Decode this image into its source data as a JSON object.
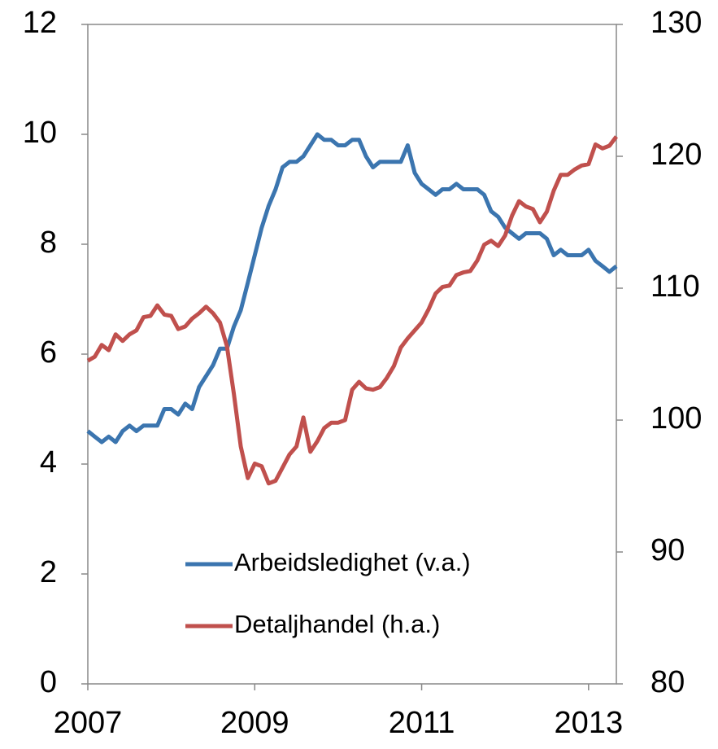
{
  "chart_data": {
    "type": "line",
    "x": [
      2007,
      2007.083,
      2007.167,
      2007.25,
      2007.333,
      2007.417,
      2007.5,
      2007.583,
      2007.667,
      2007.75,
      2007.833,
      2007.917,
      2008,
      2008.083,
      2008.167,
      2008.25,
      2008.333,
      2008.417,
      2008.5,
      2008.583,
      2008.667,
      2008.75,
      2008.833,
      2008.917,
      2009,
      2009.083,
      2009.167,
      2009.25,
      2009.333,
      2009.417,
      2009.5,
      2009.583,
      2009.667,
      2009.75,
      2009.833,
      2009.917,
      2010,
      2010.083,
      2010.167,
      2010.25,
      2010.333,
      2010.417,
      2010.5,
      2010.583,
      2010.667,
      2010.75,
      2010.833,
      2010.917,
      2011,
      2011.083,
      2011.167,
      2011.25,
      2011.333,
      2011.417,
      2011.5,
      2011.583,
      2011.667,
      2011.75,
      2011.833,
      2011.917,
      2012,
      2012.083,
      2012.167,
      2012.25,
      2012.333,
      2012.417,
      2012.5,
      2012.583,
      2012.667,
      2012.75,
      2012.833,
      2012.917,
      2013,
      2013.083,
      2013.167,
      2013.25,
      2013.333
    ],
    "series": [
      {
        "name": "Arbeidsledighet (v.a.)",
        "color": "#3b75af",
        "axis": "y",
        "values": [
          4.6,
          4.5,
          4.4,
          4.5,
          4.4,
          4.6,
          4.7,
          4.6,
          4.7,
          4.7,
          4.7,
          5.0,
          5.0,
          4.9,
          5.1,
          5.0,
          5.4,
          5.6,
          5.8,
          6.1,
          6.1,
          6.5,
          6.8,
          7.3,
          7.8,
          8.3,
          8.7,
          9.0,
          9.4,
          9.5,
          9.5,
          9.6,
          9.8,
          10.0,
          9.9,
          9.9,
          9.8,
          9.8,
          9.9,
          9.9,
          9.6,
          9.4,
          9.5,
          9.5,
          9.5,
          9.5,
          9.8,
          9.3,
          9.1,
          9.0,
          8.9,
          9.0,
          9.0,
          9.1,
          9.0,
          9.0,
          9.0,
          8.9,
          8.6,
          8.5,
          8.3,
          8.2,
          8.1,
          8.2,
          8.2,
          8.2,
          8.1,
          7.8,
          7.9,
          7.8,
          7.8,
          7.8,
          7.9,
          7.7,
          7.6,
          7.5,
          7.6
        ]
      },
      {
        "name": "Detaljhandel (h.a.)",
        "color": "#c0504d",
        "axis": "y2",
        "values": [
          104.5,
          104.8,
          105.7,
          105.3,
          106.5,
          106.0,
          106.5,
          106.8,
          107.8,
          107.9,
          108.7,
          108.0,
          107.9,
          106.9,
          107.1,
          107.7,
          108.1,
          108.6,
          108.1,
          107.4,
          105.6,
          102.0,
          98.0,
          95.6,
          96.7,
          96.5,
          95.2,
          95.4,
          96.4,
          97.4,
          98.0,
          100.2,
          97.6,
          98.4,
          99.4,
          99.8,
          99.8,
          100.0,
          102.3,
          102.9,
          102.4,
          102.3,
          102.5,
          103.2,
          104.1,
          105.5,
          106.2,
          106.8,
          107.4,
          108.4,
          109.6,
          110.1,
          110.2,
          111.0,
          111.2,
          111.3,
          112.1,
          113.3,
          113.6,
          113.2,
          114.0,
          115.5,
          116.6,
          116.2,
          116.0,
          115.0,
          115.8,
          117.4,
          118.6,
          118.6,
          119.0,
          119.3,
          119.4,
          120.9,
          120.6,
          120.8,
          121.5
        ]
      }
    ],
    "xlim": [
      2007,
      2013.333
    ],
    "xticks": [
      2007,
      2009,
      2011,
      2013
    ],
    "ylim": [
      0,
      12
    ],
    "yticks": [
      0,
      2,
      4,
      6,
      8,
      10,
      12
    ],
    "y2lim": [
      80,
      130
    ],
    "y2ticks": [
      80,
      90,
      100,
      110,
      120,
      130
    ],
    "legend": "lower center"
  }
}
